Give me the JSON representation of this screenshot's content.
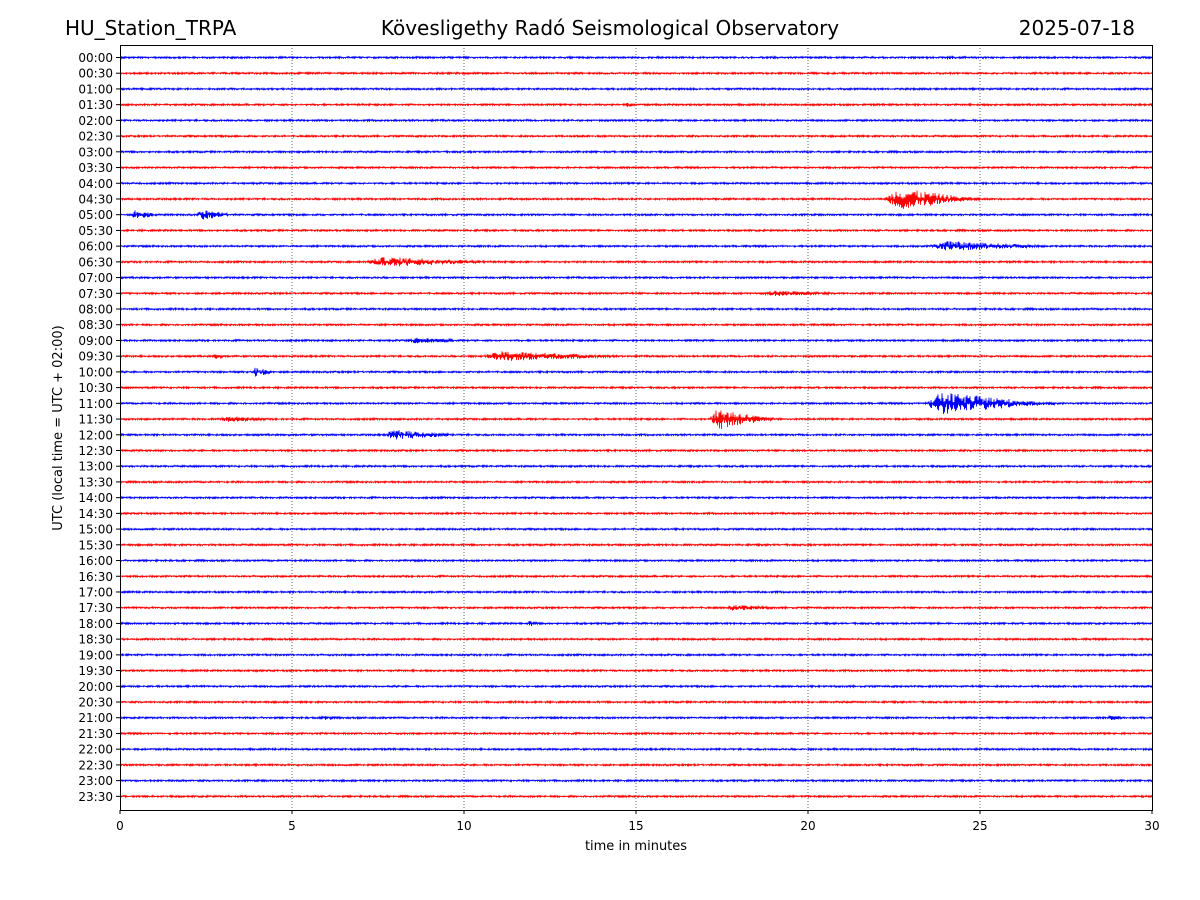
{
  "header": {
    "station": "HU_Station_TRPA",
    "title": "Kövesligethy Radó Seismological Observatory",
    "date": "2025-07-18"
  },
  "colors": {
    "even_rows": "#0000ff",
    "odd_rows": "#ff0000",
    "grid": "#000000"
  },
  "chart_data": {
    "type": "line",
    "title": "Kövesligethy Radó Seismological Observatory",
    "xlabel": "time in minutes",
    "ylabel": "UTC (local time = UTC + 02:00)",
    "xlim": [
      0,
      30
    ],
    "x_ticks": [
      0,
      5,
      10,
      15,
      20,
      25,
      30
    ],
    "rows": [
      "00:00",
      "00:30",
      "01:00",
      "01:30",
      "02:00",
      "02:30",
      "03:00",
      "03:30",
      "04:00",
      "04:30",
      "05:00",
      "05:30",
      "06:00",
      "06:30",
      "07:00",
      "07:30",
      "08:00",
      "08:30",
      "09:00",
      "09:30",
      "10:00",
      "10:30",
      "11:00",
      "11:30",
      "12:00",
      "12:30",
      "13:00",
      "13:30",
      "14:00",
      "14:30",
      "15:00",
      "15:30",
      "16:00",
      "16:30",
      "17:00",
      "17:30",
      "18:00",
      "18:30",
      "19:00",
      "19:30",
      "20:00",
      "20:30",
      "21:00",
      "21:30",
      "22:00",
      "22:30",
      "23:00",
      "23:30"
    ],
    "grid": "vertical dotted lines at x ticks",
    "events": [
      {
        "row": "00:00",
        "start": 24.0,
        "end": 24.4,
        "amp": "small"
      },
      {
        "row": "01:30",
        "start": 14.7,
        "end": 15.0,
        "amp": "small"
      },
      {
        "row": "04:30",
        "start": 22.2,
        "end": 25.0,
        "amp": "large"
      },
      {
        "row": "05:00",
        "start": 0.3,
        "end": 1.2,
        "amp": "medium"
      },
      {
        "row": "05:00",
        "start": 2.2,
        "end": 3.4,
        "amp": "medium"
      },
      {
        "row": "06:00",
        "start": 23.4,
        "end": 27.5,
        "amp": "medium"
      },
      {
        "row": "06:30",
        "start": 7.0,
        "end": 11.5,
        "amp": "medium"
      },
      {
        "row": "07:30",
        "start": 18.5,
        "end": 21.5,
        "amp": "small"
      },
      {
        "row": "09:00",
        "start": 8.2,
        "end": 10.5,
        "amp": "small"
      },
      {
        "row": "09:30",
        "start": 2.7,
        "end": 3.1,
        "amp": "small"
      },
      {
        "row": "09:30",
        "start": 10.4,
        "end": 15.2,
        "amp": "medium"
      },
      {
        "row": "10:00",
        "start": 3.8,
        "end": 4.6,
        "amp": "medium"
      },
      {
        "row": "11:00",
        "start": 23.3,
        "end": 27.2,
        "amp": "large"
      },
      {
        "row": "11:30",
        "start": 2.8,
        "end": 4.8,
        "amp": "small"
      },
      {
        "row": "11:30",
        "start": 17.1,
        "end": 19.0,
        "amp": "large"
      },
      {
        "row": "12:00",
        "start": 7.6,
        "end": 10.1,
        "amp": "medium"
      },
      {
        "row": "17:30",
        "start": 17.5,
        "end": 19.5,
        "amp": "small"
      },
      {
        "row": "18:00",
        "start": 11.8,
        "end": 12.3,
        "amp": "small"
      },
      {
        "row": "21:00",
        "start": 5.8,
        "end": 6.3,
        "amp": "small"
      },
      {
        "row": "21:00",
        "start": 28.7,
        "end": 29.3,
        "amp": "small"
      }
    ]
  }
}
